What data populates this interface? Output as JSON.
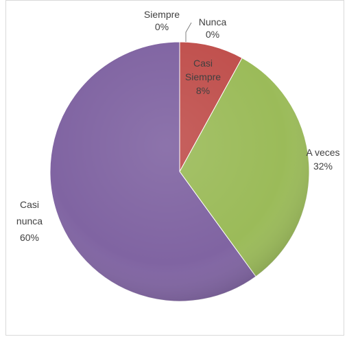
{
  "chart_data": {
    "type": "pie",
    "start_angle_deg": 0,
    "direction": "clockwise",
    "categories": [
      "Siempre",
      "Casi Siempre",
      "A veces",
      "Casi nunca",
      "Nunca"
    ],
    "values": [
      0,
      8,
      32,
      60,
      0
    ],
    "colors": {
      "Siempre": "#4f81bd",
      "Casi Siempre": "#c0504d",
      "A veces": "#9bbb59",
      "Casi nunca": "#8064a2",
      "Nunca": "#4bacc6"
    },
    "data_labels": [
      {
        "category": "Siempre",
        "lines": [
          "Siempre",
          "0%"
        ]
      },
      {
        "category": "Nunca",
        "lines": [
          "Nunca",
          "0%"
        ]
      },
      {
        "category": "Casi Siempre",
        "lines": [
          "Casi",
          "Siempre",
          "8%"
        ]
      },
      {
        "category": "A veces",
        "lines": [
          "A veces",
          "32%"
        ]
      },
      {
        "category": "Casi nunca",
        "lines": [
          "Casi",
          "nunca",
          "60%"
        ]
      }
    ],
    "legend": "none",
    "grid": false
  }
}
